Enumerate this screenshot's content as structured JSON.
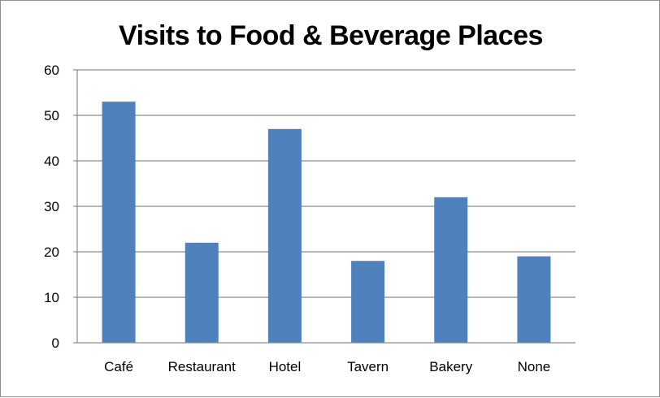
{
  "chart_data": {
    "type": "bar",
    "title": "Visits to Food & Beverage Places",
    "xlabel": "",
    "ylabel": "",
    "categories": [
      "Café",
      "Restaurant",
      "Hotel",
      "Tavern",
      "Bakery",
      "None"
    ],
    "values": [
      53,
      22,
      47,
      18,
      32,
      19
    ],
    "ylim": [
      0,
      60
    ],
    "yticks": [
      "0",
      "10",
      "20",
      "30",
      "40",
      "50",
      "60"
    ],
    "grid": true,
    "legend": "none",
    "colors": {
      "bar": "#4f81bd",
      "grid": "#8c8c8c",
      "axis": "#8c8c8c"
    }
  }
}
